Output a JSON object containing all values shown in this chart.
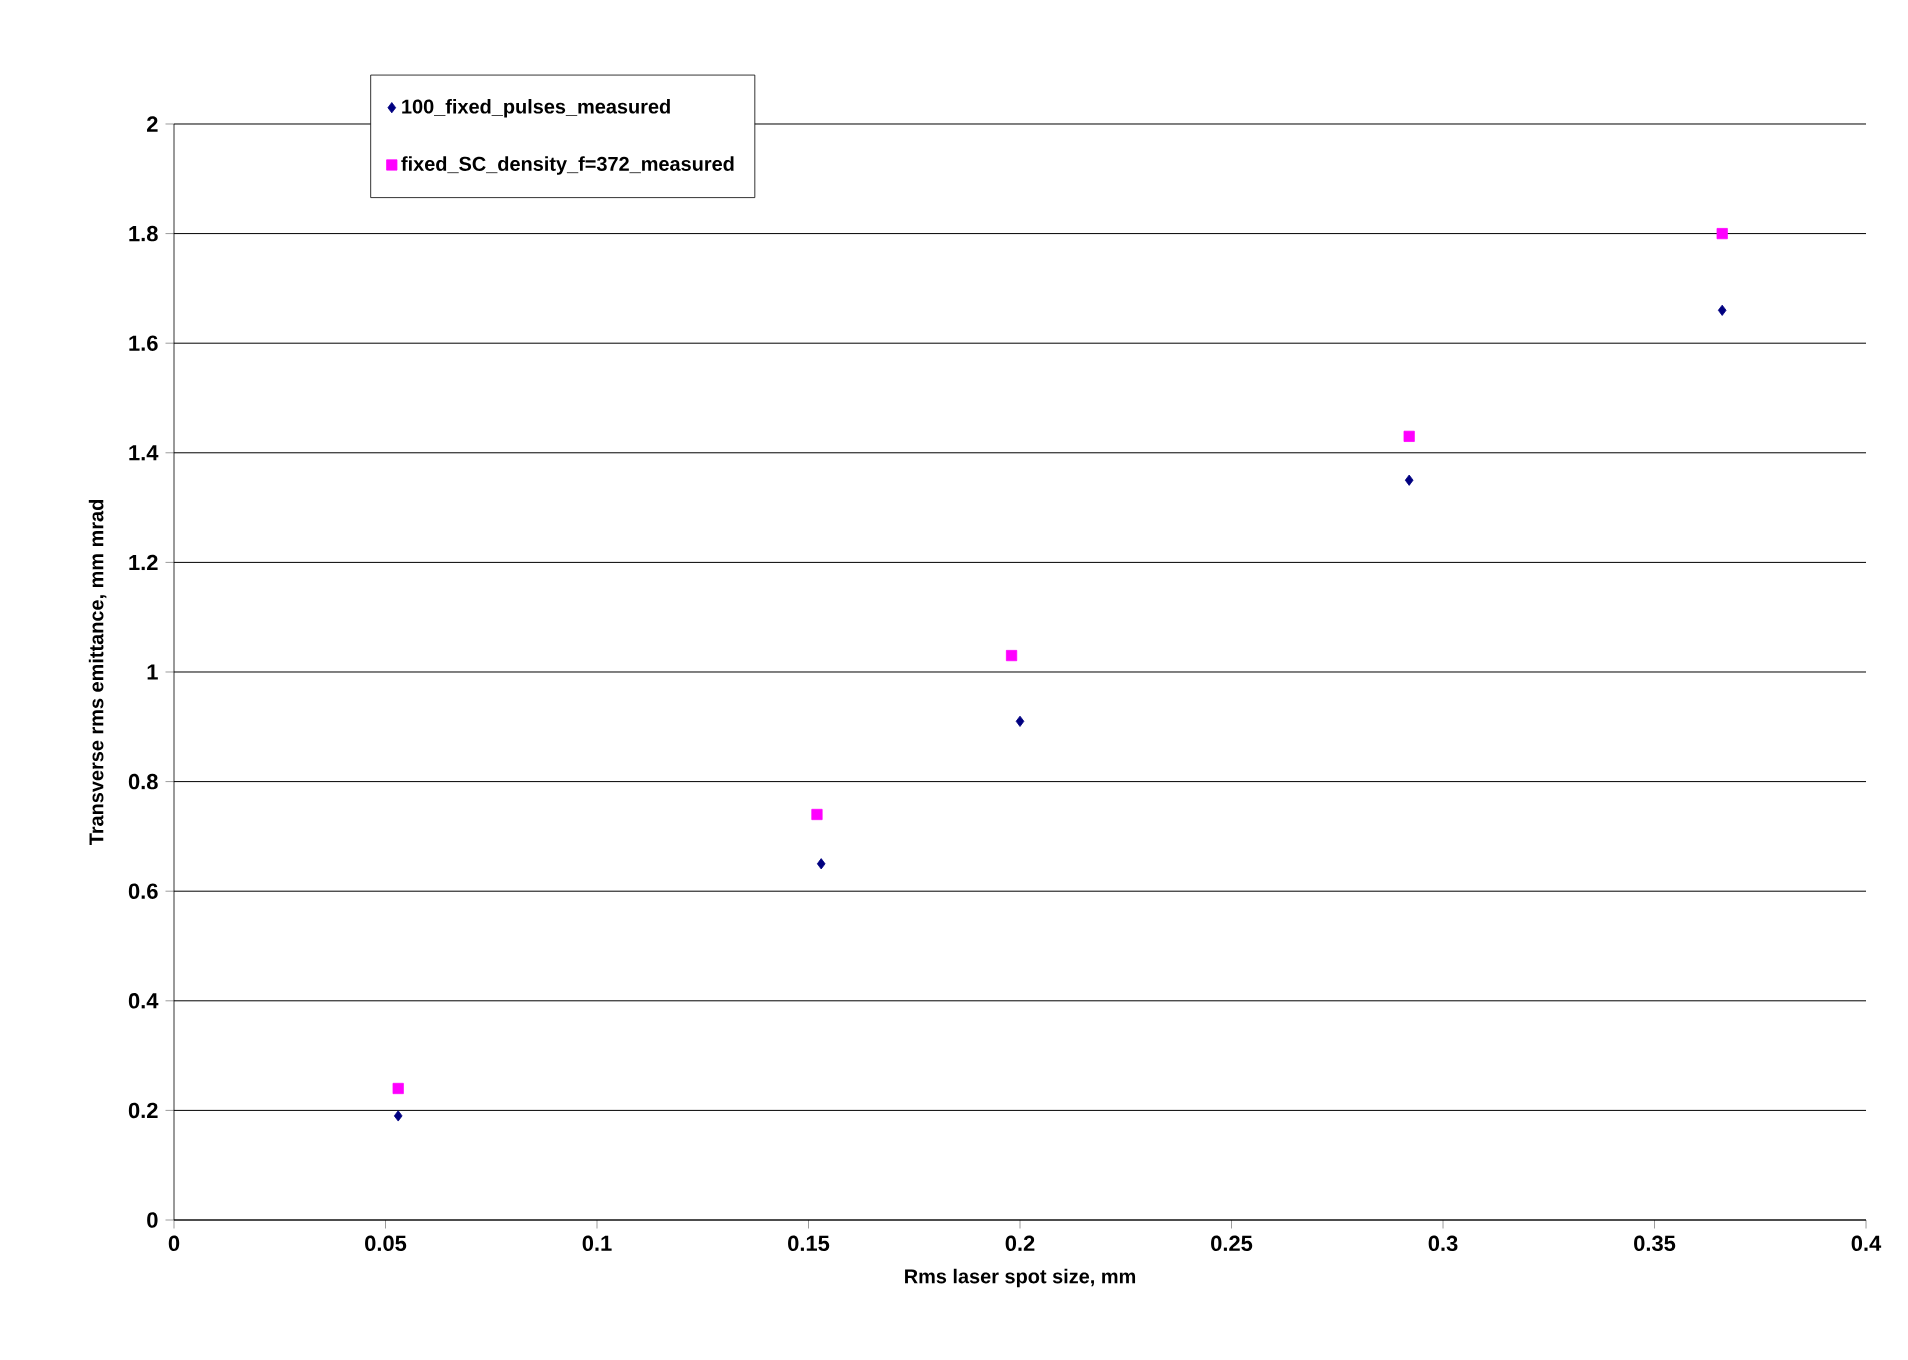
{
  "chart_data": {
    "type": "scatter",
    "xlabel": "Rms laser spot size, mm",
    "ylabel": "Transverse rms emittance, mm mrad",
    "xlim": [
      0,
      0.4
    ],
    "xticks": [
      0,
      0.05,
      0.1,
      0.15,
      0.2,
      0.25,
      0.3,
      0.35,
      0.4
    ],
    "ylim": [
      0,
      2
    ],
    "yticks": [
      0,
      0.2,
      0.4,
      0.6,
      0.8,
      1,
      1.2,
      1.4,
      1.6,
      1.8,
      2
    ],
    "grid": "y",
    "legend": "top left",
    "x": [
      0.053,
      0.153,
      0.2,
      0.292,
      0.366
    ],
    "series": [
      {
        "name": "100_fixed_pulses_measured",
        "color": "#000080",
        "marker": "diamond",
        "values": [
          0.19,
          0.65,
          0.91,
          1.35,
          1.66
        ]
      },
      {
        "name": "fixed_SC_density_f=372_measured",
        "color": "#ff00ff",
        "marker": "square",
        "x": [
          0.053,
          0.152,
          0.198,
          0.292,
          0.366
        ],
        "values": [
          0.24,
          0.74,
          1.03,
          1.43,
          1.8
        ]
      }
    ]
  }
}
